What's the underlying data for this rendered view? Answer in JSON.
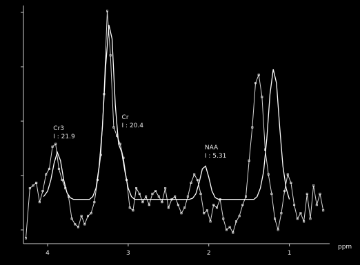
{
  "chart_data": {
    "type": "line",
    "title": "",
    "xlabel": "ppm",
    "ylabel": "",
    "x_axis_reversed": true,
    "xlim": [
      4.3,
      0.5
    ],
    "ylim": [
      -0.8,
      3.5
    ],
    "x_ticks": [
      "4",
      "3",
      "2",
      "1"
    ],
    "y_tick_count": 5,
    "grid": false,
    "background": "#000000",
    "line_color": "#ffffff",
    "series": [
      {
        "x": [
          4.27,
          4.22,
          4.18,
          4.14,
          4.1,
          4.06,
          4.02,
          3.98,
          3.94,
          3.9,
          3.86,
          3.82,
          3.78,
          3.74,
          3.7,
          3.66,
          3.62,
          3.58,
          3.54,
          3.5,
          3.46,
          3.42,
          3.38,
          3.34,
          3.3,
          3.26,
          3.22,
          3.18,
          3.14,
          3.1,
          3.06,
          3.02,
          2.98,
          2.94,
          2.9,
          2.86,
          2.82,
          2.78,
          2.74,
          2.7,
          2.66,
          2.62,
          2.58,
          2.54,
          2.5,
          2.46,
          2.42,
          2.38,
          2.34,
          2.3,
          2.26,
          2.22,
          2.18,
          2.14,
          2.1,
          2.06,
          2.02,
          1.98,
          1.94,
          1.9,
          1.86,
          1.82,
          1.78,
          1.74,
          1.7,
          1.66,
          1.62,
          1.58,
          1.54,
          1.5,
          1.46,
          1.42,
          1.38,
          1.34,
          1.3,
          1.26,
          1.22,
          1.18,
          1.14,
          1.1,
          1.06,
          1.02,
          0.98,
          0.94,
          0.9,
          0.86,
          0.82,
          0.78,
          0.74,
          0.7,
          0.66,
          0.62,
          0.58
        ],
        "y": [
          -0.7,
          0.2,
          0.25,
          0.3,
          -0.05,
          0.15,
          0.45,
          0.55,
          0.95,
          1.0,
          0.55,
          0.35,
          0.2,
          0.05,
          -0.35,
          -0.45,
          -0.5,
          -0.3,
          -0.45,
          -0.3,
          -0.25,
          -0.05,
          0.35,
          0.8,
          1.9,
          3.4,
          2.6,
          1.3,
          1.15,
          1.0,
          0.75,
          0.35,
          -0.15,
          -0.2,
          0.2,
          0.1,
          -0.05,
          0.05,
          -0.1,
          0.1,
          0.15,
          0.05,
          -0.05,
          0.2,
          -0.15,
          0.0,
          0.05,
          -0.1,
          -0.25,
          -0.15,
          0.05,
          0.3,
          0.45,
          0.35,
          0.1,
          -0.25,
          -0.2,
          -0.4,
          -0.1,
          -0.15,
          0.0,
          -0.35,
          -0.55,
          -0.5,
          -0.6,
          -0.4,
          -0.3,
          -0.1,
          0.05,
          0.7,
          1.3,
          2.1,
          2.25,
          1.85,
          0.9,
          0.45,
          0.1,
          -0.35,
          -0.55,
          -0.25,
          0.15,
          0.45,
          0.3,
          -0.1,
          -0.35,
          -0.25,
          -0.4,
          0.1,
          -0.35,
          0.25,
          -0.1,
          0.1,
          -0.2
        ]
      },
      {
        "x": [
          4.05,
          4.0,
          3.96,
          3.92,
          3.88,
          3.84,
          3.8,
          3.76,
          3.72,
          3.68,
          3.64,
          3.6,
          3.56,
          3.52,
          3.48,
          3.44,
          3.4,
          3.36,
          3.32,
          3.28,
          3.24,
          3.2,
          3.16,
          3.12,
          3.08,
          3.04,
          3.0,
          2.96,
          2.92,
          2.88,
          2.84,
          2.8,
          2.76,
          2.72,
          2.68,
          2.64,
          2.6,
          2.56,
          2.52,
          2.48,
          2.44,
          2.4,
          2.36,
          2.32,
          2.28,
          2.24,
          2.2,
          2.16,
          2.12,
          2.08,
          2.04,
          2.0,
          1.96,
          1.92,
          1.88,
          1.84,
          1.8,
          1.76,
          1.72,
          1.68,
          1.64,
          1.6,
          1.56,
          1.52,
          1.48,
          1.44,
          1.4,
          1.36,
          1.32,
          1.28,
          1.24,
          1.2,
          1.16,
          1.12,
          1.08,
          1.04,
          1.0
        ],
        "y": [
          0.05,
          0.15,
          0.35,
          0.65,
          0.85,
          0.7,
          0.35,
          0.12,
          0.03,
          0.0,
          0.0,
          0.0,
          0.0,
          0.0,
          0.0,
          0.05,
          0.2,
          0.6,
          1.3,
          2.4,
          3.15,
          2.9,
          1.7,
          1.0,
          0.85,
          0.5,
          0.2,
          0.05,
          0.0,
          0.0,
          0.0,
          0.0,
          0.0,
          0.0,
          0.0,
          0.0,
          0.0,
          0.0,
          0.0,
          0.0,
          0.0,
          0.0,
          0.0,
          0.0,
          0.0,
          0.0,
          0.02,
          0.1,
          0.3,
          0.55,
          0.6,
          0.4,
          0.15,
          0.03,
          0.0,
          0.0,
          0.0,
          0.0,
          0.0,
          0.0,
          0.0,
          0.0,
          0.0,
          0.0,
          0.0,
          0.0,
          0.05,
          0.2,
          0.5,
          1.1,
          1.9,
          2.35,
          2.1,
          1.3,
          0.6,
          0.2,
          0.0
        ]
      }
    ],
    "annotations": [
      {
        "x": 3.93,
        "y": 1.25,
        "lines": [
          "Cr3",
          "I : 21.9"
        ]
      },
      {
        "x": 3.08,
        "y": 1.45,
        "lines": [
          "Cr",
          "I : 20.4"
        ]
      },
      {
        "x": 2.05,
        "y": 0.9,
        "lines": [
          "NAA",
          "I : 5.31"
        ]
      }
    ]
  }
}
